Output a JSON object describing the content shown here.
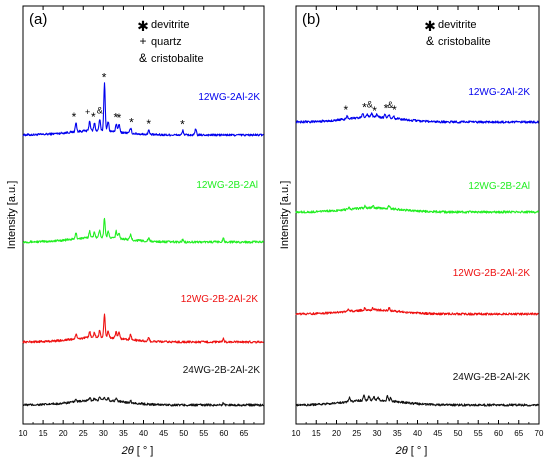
{
  "chart_data": [
    {
      "type": "line",
      "panel_label": "(a)",
      "xlabel_symbol": "2θ",
      "xlabel_unit": "[ ° ]",
      "ylabel": "Intensity [a.u.]",
      "xlim": [
        10,
        70
      ],
      "x_ticks": [
        10,
        15,
        20,
        25,
        30,
        35,
        40,
        45,
        50,
        55,
        60,
        65
      ],
      "grid": false,
      "legend": [
        {
          "symbol": "✱",
          "text": "devitrite"
        },
        {
          "symbol": "+",
          "text": "quartz"
        },
        {
          "symbol": "&",
          "text": "cristobalite"
        }
      ],
      "series": [
        {
          "name": "12WG-2Al-2K",
          "color": "#0000ee",
          "baseline": 0.95,
          "hump_height": 0.7,
          "hump_center": 28,
          "peaks": [
            [
              23.2,
              1.4
            ],
            [
              26.6,
              1.6
            ],
            [
              27.8,
              1.2
            ],
            [
              29.1,
              1.8
            ],
            [
              30.3,
              7.6
            ],
            [
              31.2,
              1.6
            ],
            [
              33.2,
              1.3
            ],
            [
              33.9,
              1.3
            ],
            [
              36.8,
              0.8
            ],
            [
              41.3,
              0.7
            ],
            [
              49.8,
              0.7
            ],
            [
              53.0,
              0.9
            ]
          ],
          "markers": [
            {
              "x": 22.7,
              "sym": "*"
            },
            {
              "x": 26.1,
              "sym": "+"
            },
            {
              "x": 27.5,
              "sym": "*"
            },
            {
              "x": 29.1,
              "sym": "&"
            },
            {
              "x": 30.2,
              "sym": "*"
            },
            {
              "x": 33.1,
              "sym": "*"
            },
            {
              "x": 33.9,
              "sym": "*"
            },
            {
              "x": 37.0,
              "sym": "*"
            },
            {
              "x": 41.3,
              "sym": "*"
            },
            {
              "x": 49.7,
              "sym": "*"
            }
          ]
        },
        {
          "name": "12WG-2B-2Al",
          "color": "#22ee22",
          "baseline": 0.9,
          "hump_height": 0.75,
          "hump_center": 29,
          "peaks": [
            [
              23.2,
              0.9
            ],
            [
              26.6,
              1.1
            ],
            [
              27.8,
              0.9
            ],
            [
              29.1,
              1.2
            ],
            [
              30.3,
              3.1
            ],
            [
              31.2,
              1.0
            ],
            [
              33.2,
              1.1
            ],
            [
              33.9,
              1.0
            ],
            [
              36.8,
              0.8
            ],
            [
              41.3,
              0.5
            ],
            [
              49.8,
              0.4
            ],
            [
              59.9,
              0.6
            ]
          ]
        },
        {
          "name": "12WG-2B-2Al-2K",
          "color": "#ee1111",
          "baseline": 0.9,
          "hump_height": 0.75,
          "hump_center": 29,
          "peaks": [
            [
              23.2,
              0.7
            ],
            [
              26.6,
              1.0
            ],
            [
              27.8,
              0.8
            ],
            [
              29.1,
              1.1
            ],
            [
              30.3,
              3.6
            ],
            [
              31.2,
              1.1
            ],
            [
              33.2,
              1.0
            ],
            [
              33.9,
              0.9
            ],
            [
              36.8,
              0.8
            ],
            [
              41.3,
              0.5
            ],
            [
              59.9,
              0.5
            ]
          ]
        },
        {
          "name": "24WG-2B-2Al-2K",
          "color": "#111111",
          "baseline": 0.85,
          "hump_height": 0.75,
          "hump_center": 29,
          "peaks": [
            [
              23.2,
              0.5
            ],
            [
              26.6,
              0.5
            ],
            [
              27.8,
              0.4
            ],
            [
              29.1,
              0.5
            ],
            [
              30.3,
              0.5
            ],
            [
              31.2,
              0.4
            ],
            [
              33.2,
              0.5
            ],
            [
              36.8,
              0.3
            ],
            [
              59.9,
              0.3
            ]
          ]
        }
      ]
    },
    {
      "type": "line",
      "panel_label": "(b)",
      "xlabel_symbol": "2θ",
      "xlabel_unit": "[ ° ]",
      "ylabel": "Intensity [a.u.]",
      "xlim": [
        10,
        70
      ],
      "x_ticks": [
        10,
        15,
        20,
        25,
        30,
        35,
        40,
        45,
        50,
        55,
        60,
        65,
        70
      ],
      "grid": false,
      "legend": [
        {
          "symbol": "✱",
          "text": "devitrite"
        },
        {
          "symbol": "&",
          "text": "cristobalite"
        }
      ],
      "series": [
        {
          "name": "12WG-2Al-2K",
          "color": "#0000ee",
          "baseline": 0.95,
          "hump_height": 0.8,
          "hump_center": 29,
          "peaks": [
            [
              22.6,
              0.5
            ],
            [
              26.5,
              0.6
            ],
            [
              27.6,
              0.5
            ],
            [
              28.7,
              0.6
            ],
            [
              30.0,
              0.5
            ],
            [
              32.0,
              0.5
            ],
            [
              33.0,
              0.6
            ],
            [
              34.1,
              0.4
            ]
          ],
          "markers": [
            {
              "x": 22.3,
              "sym": "*"
            },
            {
              "x": 26.9,
              "sym": "*"
            },
            {
              "x": 28.2,
              "sym": "&"
            },
            {
              "x": 29.4,
              "sym": "*"
            },
            {
              "x": 32.2,
              "sym": "*"
            },
            {
              "x": 33.3,
              "sym": "&"
            },
            {
              "x": 34.3,
              "sym": "*"
            }
          ]
        },
        {
          "name": "12WG-2B-2Al",
          "color": "#22ee22",
          "baseline": 0.9,
          "hump_height": 0.65,
          "hump_center": 29,
          "peaks": [
            [
              23.0,
              0.3
            ],
            [
              27.0,
              0.3
            ],
            [
              29.0,
              0.3
            ],
            [
              33.0,
              0.4
            ]
          ]
        },
        {
          "name": "12WG-2B-2Al-2K",
          "color": "#ee1111",
          "baseline": 0.9,
          "hump_height": 0.65,
          "hump_center": 29,
          "peaks": [
            [
              23.0,
              0.3
            ],
            [
              27.0,
              0.3
            ],
            [
              29.0,
              0.3
            ],
            [
              33.0,
              0.4
            ]
          ]
        },
        {
          "name": "24WG-2B-2Al-2K",
          "color": "#111111",
          "baseline": 0.9,
          "hump_height": 0.8,
          "hump_center": 29,
          "peaks": [
            [
              23.2,
              0.6
            ],
            [
              26.8,
              0.7
            ],
            [
              28.0,
              0.6
            ],
            [
              29.2,
              0.6
            ],
            [
              30.3,
              0.5
            ],
            [
              32.6,
              0.7
            ],
            [
              33.4,
              0.6
            ]
          ]
        }
      ]
    }
  ]
}
